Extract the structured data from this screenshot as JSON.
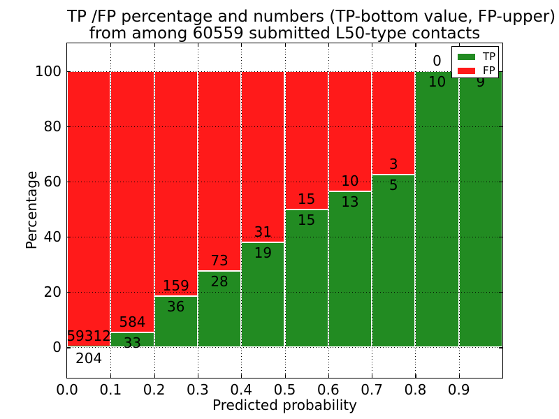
{
  "chart_data": {
    "type": "bar",
    "subtype": "stacked-percentage-histogram",
    "title": "TP /FP percentage and numbers (TP-bottom value, FP-upper)\nfrom among 60559 submitted L50-type contacts",
    "title_line1": "TP /FP percentage and numbers (TP-bottom value, FP-upper)",
    "title_line2": "from among 60559 submitted L50-type contacts",
    "xlabel": "Predicted probability",
    "ylabel": "Percentage",
    "total_submitted_contacts": 60559,
    "xlim": [
      0.0,
      1.0
    ],
    "ylim": [
      -11,
      110
    ],
    "grid": "dotted-black",
    "x_tick_values": [
      0.0,
      0.1,
      0.2,
      0.3,
      0.4,
      0.5,
      0.6,
      0.7,
      0.8,
      0.9
    ],
    "x_tick_labels": [
      "0.0",
      "0.1",
      "0.2",
      "0.3",
      "0.4",
      "0.5",
      "0.6",
      "0.7",
      "0.8",
      "0.9"
    ],
    "y_tick_values": [
      0,
      20,
      40,
      60,
      80,
      100
    ],
    "y_tick_labels": [
      "0",
      "20",
      "40",
      "60",
      "80",
      "100"
    ],
    "colors": {
      "tp": "#228b22",
      "fp": "#ff1a1a"
    },
    "legend": {
      "position": "upper-right",
      "entries": [
        {
          "label": "TP",
          "color": "#228b22"
        },
        {
          "label": "FP",
          "color": "#ff1a1a"
        }
      ]
    },
    "bins": [
      {
        "x_start": 0.0,
        "x_end": 0.1,
        "tp": 204,
        "fp": 59312,
        "tp_pct": 0.34,
        "fp_pct": 99.66,
        "fp_label_visible": true,
        "tp_label_below_axis": true
      },
      {
        "x_start": 0.1,
        "x_end": 0.2,
        "tp": 33,
        "fp": 584,
        "tp_pct": 5.35,
        "fp_pct": 94.65,
        "fp_label_visible": true,
        "tp_label_below_axis": false
      },
      {
        "x_start": 0.2,
        "x_end": 0.3,
        "tp": 36,
        "fp": 159,
        "tp_pct": 18.46,
        "fp_pct": 81.54,
        "fp_label_visible": true,
        "tp_label_below_axis": false
      },
      {
        "x_start": 0.3,
        "x_end": 0.4,
        "tp": 28,
        "fp": 73,
        "tp_pct": 27.72,
        "fp_pct": 72.28,
        "fp_label_visible": true,
        "tp_label_below_axis": false
      },
      {
        "x_start": 0.4,
        "x_end": 0.5,
        "tp": 19,
        "fp": 31,
        "tp_pct": 38.0,
        "fp_pct": 62.0,
        "fp_label_visible": true,
        "tp_label_below_axis": false
      },
      {
        "x_start": 0.5,
        "x_end": 0.6,
        "tp": 15,
        "fp": 15,
        "tp_pct": 50.0,
        "fp_pct": 50.0,
        "fp_label_visible": true,
        "tp_label_below_axis": false
      },
      {
        "x_start": 0.6,
        "x_end": 0.7,
        "tp": 13,
        "fp": 10,
        "tp_pct": 56.52,
        "fp_pct": 43.48,
        "fp_label_visible": true,
        "tp_label_below_axis": false
      },
      {
        "x_start": 0.7,
        "x_end": 0.8,
        "tp": 5,
        "fp": 3,
        "tp_pct": 62.5,
        "fp_pct": 37.5,
        "fp_label_visible": true,
        "tp_label_below_axis": false
      },
      {
        "x_start": 0.8,
        "x_end": 0.9,
        "tp": 10,
        "fp": 0,
        "tp_pct": 100.0,
        "fp_pct": 0.0,
        "fp_label_visible": true,
        "tp_label_below_axis": false
      },
      {
        "x_start": 0.9,
        "x_end": 1.0,
        "tp": 9,
        "fp": 0,
        "tp_pct": 100.0,
        "fp_pct": 0.0,
        "fp_label_visible": false,
        "tp_label_below_axis": false
      }
    ]
  }
}
